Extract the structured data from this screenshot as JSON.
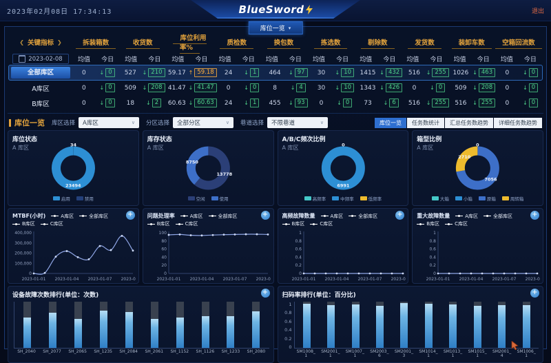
{
  "icons": {
    "chevron": "∨",
    "caret": "▾",
    "plus": "+",
    "arrow_down": "↓",
    "arrow_up": "↑",
    "nav_prev": "❮",
    "nav_next": "❯",
    "bolt": "⚡"
  },
  "header": {
    "datetime": "2023年02月08日 17:34:13",
    "logo": "BlueSword",
    "exit_label": "退出",
    "nav_tab": "库位一览"
  },
  "kpi": {
    "title": "关键指标",
    "date": "2023-02-08",
    "avg_label": "均值",
    "today_label": "今日",
    "columns": [
      "拆装箱数",
      "收货数",
      "库位利用率%",
      "质检数",
      "换包数",
      "拣选数",
      "剔除数",
      "发货数",
      "装卸车数",
      "空箱回流数"
    ],
    "rows": [
      {
        "name": "全部库区",
        "selected": true,
        "cells": [
          [
            "0",
            "0"
          ],
          [
            "527",
            "210"
          ],
          [
            "59.17",
            "59.18",
            "up",
            "o"
          ],
          [
            "24",
            "1"
          ],
          [
            "464",
            "97"
          ],
          [
            "30",
            "10"
          ],
          [
            "1415",
            "432"
          ],
          [
            "516",
            "255"
          ],
          [
            "1026",
            "463"
          ],
          [
            "0",
            "0"
          ]
        ]
      },
      {
        "name": "A库区",
        "selected": false,
        "cells": [
          [
            "0",
            "0"
          ],
          [
            "509",
            "208"
          ],
          [
            "41.47",
            "41.47"
          ],
          [
            "0",
            "0"
          ],
          [
            "8",
            "4"
          ],
          [
            "30",
            "10"
          ],
          [
            "1343",
            "426"
          ],
          [
            "0",
            "0"
          ],
          [
            "509",
            "208"
          ],
          [
            "0",
            "0"
          ]
        ]
      },
      {
        "name": "B库区",
        "selected": false,
        "cells": [
          [
            "0",
            "0"
          ],
          [
            "18",
            "2"
          ],
          [
            "60.63",
            "60.63"
          ],
          [
            "24",
            "1"
          ],
          [
            "455",
            "93"
          ],
          [
            "0",
            "0"
          ],
          [
            "73",
            "6"
          ],
          [
            "516",
            "255"
          ],
          [
            "516",
            "255"
          ],
          [
            "0",
            "0"
          ]
        ]
      }
    ]
  },
  "filters": {
    "title": "库位一览",
    "groups": [
      {
        "label": "库区选择",
        "value": "A库区"
      },
      {
        "label": "分区选择",
        "value": "全部分区"
      },
      {
        "label": "巷道选择",
        "value": "不限巷道"
      }
    ],
    "tabs": [
      {
        "label": "库位一览",
        "active": true
      },
      {
        "label": "任务数统计",
        "active": false
      },
      {
        "label": "汇总任务数趋势",
        "active": false
      },
      {
        "label": "详细任务数趋势",
        "active": false
      }
    ]
  },
  "chart_data": [
    {
      "type": "pie",
      "title": "库位状态",
      "subtitle": "A 库区",
      "slices": [
        {
          "label": "禁用",
          "value": 34,
          "color": "#24407a",
          "show_label": true
        },
        {
          "label": "启用",
          "value": 23494,
          "color": "#2d8fd4",
          "show_label": true
        }
      ],
      "legend": [
        {
          "label": "启用",
          "color": "#2d8fd4"
        },
        {
          "label": "禁用",
          "color": "#24407a"
        }
      ]
    },
    {
      "type": "pie",
      "title": "库存状态",
      "subtitle": "A 库区",
      "slices": [
        {
          "label": "空闲",
          "value": 13778,
          "color": "#2b3f77",
          "show_label": true
        },
        {
          "label": "使用",
          "value": 8750,
          "color": "#3d6fc8",
          "show_label": true
        }
      ],
      "legend": [
        {
          "label": "空闲",
          "color": "#2b3f77"
        },
        {
          "label": "使用",
          "color": "#3d6fc8"
        }
      ]
    },
    {
      "type": "pie",
      "title": "A/B/C频次比例",
      "subtitle": "A 库区",
      "slices": [
        {
          "label": "高频率",
          "value": 0,
          "color": "#45c8c8",
          "show_label": true
        },
        {
          "label": "中频率",
          "value": 6991,
          "color": "#2d8fd4",
          "show_label": true
        },
        {
          "label": "低频率",
          "value": 0,
          "color": "#eebb2d",
          "show_label": false
        }
      ],
      "legend": [
        {
          "label": "高频率",
          "color": "#45c8c8"
        },
        {
          "label": "中频率",
          "color": "#2d8fd4"
        },
        {
          "label": "低频率",
          "color": "#eebb2d"
        }
      ]
    },
    {
      "type": "pie",
      "title": "箱型比例",
      "subtitle": "A 库区",
      "slices": [
        {
          "label": "大箱",
          "value": 0,
          "color": "#45c8c8",
          "show_label": true
        },
        {
          "label": "小箱",
          "value": 0,
          "color": "#2d8fd4",
          "show_label": false
        },
        {
          "label": "原箱",
          "value": 7056,
          "color": "#3d6fc8",
          "show_label": true
        },
        {
          "label": "周转箱",
          "value": 2710,
          "color": "#eebb2d",
          "show_label": true
        }
      ],
      "legend": [
        {
          "label": "大箱",
          "color": "#45c8c8"
        },
        {
          "label": "小箱",
          "color": "#2d8fd4"
        },
        {
          "label": "原箱",
          "color": "#3d6fc8"
        },
        {
          "label": "周转箱",
          "color": "#eebb2d"
        }
      ]
    },
    {
      "type": "line",
      "title": "MTBF(小时)",
      "legend": [
        "A库区",
        "全部库区",
        "B库区",
        "C库区"
      ],
      "x_ticks": [
        "2023-01-01",
        "2023-01-04",
        "2023-01-07",
        "2023-01-10"
      ],
      "yticks": [
        "400,000",
        "300,000",
        "200,000",
        "100,000",
        "0"
      ],
      "ymax": 400000,
      "series": [
        {
          "name": "A库区",
          "values": [
            0,
            5000,
            165000,
            220000,
            160000,
            140000,
            270000,
            230000,
            370000,
            225000
          ]
        }
      ]
    },
    {
      "type": "line",
      "title": "问题处理率",
      "legend": [
        "A库区",
        "全部库区",
        "B库区",
        "C库区"
      ],
      "x_ticks": [
        "2023-01-01",
        "2023-01-04",
        "2023-01-07",
        "2023-01-10"
      ],
      "yticks": [
        "100",
        "80",
        "60",
        "40",
        "20",
        "0"
      ],
      "ymax": 100,
      "series": [
        {
          "name": "A库区",
          "values": [
            95,
            96,
            94,
            93.5,
            94.5,
            95.5,
            96,
            96.5,
            96.5,
            96
          ]
        }
      ]
    },
    {
      "type": "line",
      "title": "高频故障数量",
      "legend": [
        "A库区",
        "全部库区",
        "B库区",
        "C库区"
      ],
      "x_ticks": [
        "2023-01-01",
        "2023-01-04",
        "2023-01-07",
        "2023-01-10"
      ],
      "yticks": [
        "1",
        "0.8",
        "0.6",
        "0.4",
        "0.2",
        "0"
      ],
      "ymax": 1,
      "series": [
        {
          "name": "A库区",
          "values": [
            0,
            0,
            0,
            0,
            0,
            0,
            0,
            0,
            0,
            0
          ]
        }
      ]
    },
    {
      "type": "line",
      "title": "重大故障数量",
      "legend": [
        "A库区",
        "全部库区",
        "B库区",
        "C库区"
      ],
      "x_ticks": [
        "2023-01-01",
        "2023-01-04",
        "2023-01-07",
        "2023-01-10"
      ],
      "yticks": [
        "1",
        "0.8",
        "0.6",
        "0.4",
        "0.2",
        "0"
      ],
      "ymax": 1,
      "series": [
        {
          "name": "A库区",
          "values": [
            0,
            0,
            0,
            0,
            0,
            0,
            0,
            0,
            0,
            0
          ]
        }
      ]
    },
    {
      "type": "bar",
      "title": "设备故障次数排行(单位：次数)",
      "categories": [
        "SH_2040",
        "SH_2077",
        "SH_2065",
        "SH_1235",
        "SH_2084",
        "SH_2061",
        "SH_1152",
        "SH_1126",
        "SH_1233",
        "SH_2080"
      ],
      "values": [
        0.66,
        0.76,
        0.63,
        0.81,
        0.77,
        0.62,
        0.66,
        0.69,
        0.69,
        0.79
      ],
      "ymax": 1,
      "yticks": null,
      "two_line_labels": false
    },
    {
      "type": "bar",
      "title": "扫码率排行(单位：百分比)",
      "categories": [
        "SM1008_1",
        "SM2001_1",
        "SM1007_1",
        "SM2003_6",
        "SM2001_3",
        "SM1014_1",
        "SM1013_1",
        "SM1015_1",
        "SM2001_4",
        "SM1006_1"
      ],
      "values": [
        0.96,
        0.93,
        0.94,
        0.91,
        0.97,
        0.96,
        0.94,
        0.91,
        0.92,
        0.93
      ],
      "ymax": 1,
      "yticks": [
        "1",
        "0.8",
        "0.6",
        "0.4",
        "0.2",
        "0"
      ],
      "two_line_labels": true
    }
  ]
}
